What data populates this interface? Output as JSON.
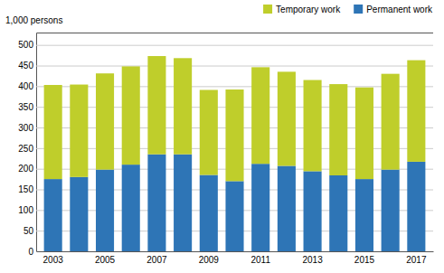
{
  "chart_data": {
    "type": "bar",
    "stacked": true,
    "ylabel": "1,000 persons",
    "categories": [
      "2003",
      null,
      "2005",
      null,
      "2007",
      null,
      "2009",
      null,
      "2011",
      null,
      "2013",
      null,
      "2015",
      null,
      "2017"
    ],
    "series": [
      {
        "name": "Permanent work",
        "color": "#2E75B6",
        "values": [
          175,
          180,
          198,
          210,
          235,
          235,
          185,
          170,
          212,
          207,
          194,
          184,
          175,
          198,
          217
        ]
      },
      {
        "name": "Temporary work",
        "color": "#BFCE2B",
        "values": [
          228,
          224,
          233,
          238,
          238,
          233,
          206,
          222,
          234,
          228,
          221,
          221,
          222,
          232,
          246
        ]
      }
    ],
    "ylim": [
      0,
      530
    ],
    "yticks": [
      0,
      50,
      100,
      150,
      200,
      250,
      300,
      350,
      400,
      450,
      500
    ],
    "grid": true,
    "legend": "upper right"
  }
}
